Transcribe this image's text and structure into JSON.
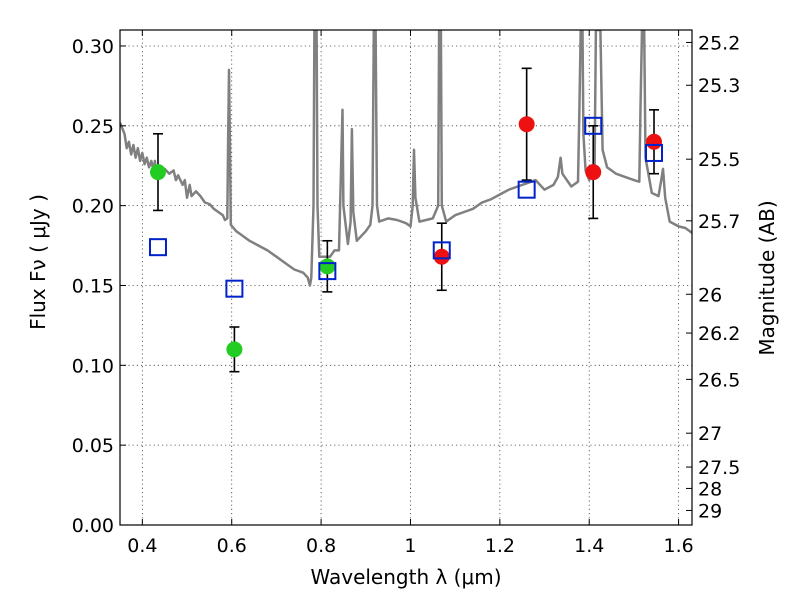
{
  "chart_data": {
    "type": "scatter",
    "xlabel": "Wavelength  λ (μm)",
    "ylabel": "Flux  Fν  ( μJy )",
    "y2label": "Magnitude (AB)",
    "xlim": [
      0.35,
      1.63
    ],
    "ylim": [
      0.0,
      0.31
    ],
    "grid": true,
    "x_ticks": [
      "0.4",
      "0.6",
      "0.8",
      "1",
      "1.2",
      "1.4",
      "1.6"
    ],
    "x_tick_values": [
      0.4,
      0.6,
      0.8,
      1.0,
      1.2,
      1.4,
      1.6
    ],
    "y_ticks": [
      "0.00",
      "0.05",
      "0.10",
      "0.15",
      "0.20",
      "0.25",
      "0.30"
    ],
    "y_tick_values": [
      0.0,
      0.05,
      0.1,
      0.15,
      0.2,
      0.25,
      0.3
    ],
    "y2_ticks": [
      {
        "label": "25.2",
        "flux": 0.3022
      },
      {
        "label": "25.3",
        "flux": 0.2754
      },
      {
        "label": "25.5",
        "flux": 0.2291
      },
      {
        "label": "25.7",
        "flux": 0.1905
      },
      {
        "label": "26",
        "flux": 0.1445
      },
      {
        "label": "26.2",
        "flux": 0.1202
      },
      {
        "label": "26.5",
        "flux": 0.0912
      },
      {
        "label": "27",
        "flux": 0.0575
      },
      {
        "label": "27.5",
        "flux": 0.0363
      },
      {
        "label": "28",
        "flux": 0.0229
      },
      {
        "label": "29",
        "flux": 0.0091
      }
    ],
    "series": [
      {
        "marker": "circle",
        "color": "#22cc22",
        "points": [
          {
            "x": 0.435,
            "y": 0.221,
            "err": 0.024
          },
          {
            "x": 0.606,
            "y": 0.11,
            "err": 0.014
          },
          {
            "x": 0.814,
            "y": 0.162,
            "err": 0.016
          }
        ]
      },
      {
        "marker": "circle",
        "color": "#ee1111",
        "points": [
          {
            "x": 1.07,
            "y": 0.168,
            "err": 0.021
          },
          {
            "x": 1.26,
            "y": 0.251,
            "err": 0.035
          },
          {
            "x": 1.409,
            "y": 0.221,
            "err": 0.029
          },
          {
            "x": 1.545,
            "y": 0.24,
            "err": 0.02
          }
        ]
      },
      {
        "marker": "open-square",
        "color": "#0022cc",
        "points": [
          {
            "x": 0.435,
            "y": 0.174
          },
          {
            "x": 0.606,
            "y": 0.148
          },
          {
            "x": 0.814,
            "y": 0.159
          },
          {
            "x": 1.07,
            "y": 0.172
          },
          {
            "x": 1.26,
            "y": 0.21
          },
          {
            "x": 1.409,
            "y": 0.25
          },
          {
            "x": 1.545,
            "y": 0.233
          }
        ]
      }
    ],
    "spectrum": {
      "color": "#808080",
      "points": [
        [
          0.35,
          0.252
        ],
        [
          0.36,
          0.245
        ],
        [
          0.365,
          0.236
        ],
        [
          0.37,
          0.24
        ],
        [
          0.375,
          0.232
        ],
        [
          0.38,
          0.238
        ],
        [
          0.385,
          0.23
        ],
        [
          0.39,
          0.236
        ],
        [
          0.395,
          0.228
        ],
        [
          0.4,
          0.233
        ],
        [
          0.405,
          0.226
        ],
        [
          0.41,
          0.23
        ],
        [
          0.415,
          0.224
        ],
        [
          0.42,
          0.228
        ],
        [
          0.425,
          0.222
        ],
        [
          0.428,
          0.228
        ],
        [
          0.43,
          0.221
        ],
        [
          0.44,
          0.225
        ],
        [
          0.445,
          0.219
        ],
        [
          0.45,
          0.223
        ],
        [
          0.46,
          0.22
        ],
        [
          0.47,
          0.222
        ],
        [
          0.475,
          0.216
        ],
        [
          0.48,
          0.219
        ],
        [
          0.49,
          0.213
        ],
        [
          0.495,
          0.216
        ],
        [
          0.5,
          0.205
        ],
        [
          0.506,
          0.213
        ],
        [
          0.51,
          0.206
        ],
        [
          0.52,
          0.209
        ],
        [
          0.53,
          0.206
        ],
        [
          0.54,
          0.202
        ],
        [
          0.55,
          0.201
        ],
        [
          0.56,
          0.198
        ],
        [
          0.57,
          0.196
        ],
        [
          0.58,
          0.194
        ],
        [
          0.585,
          0.191
        ],
        [
          0.59,
          0.192
        ],
        [
          0.592,
          0.24
        ],
        [
          0.594,
          0.285
        ],
        [
          0.596,
          0.24
        ],
        [
          0.598,
          0.188
        ],
        [
          0.61,
          0.184
        ],
        [
          0.62,
          0.182
        ],
        [
          0.63,
          0.18
        ],
        [
          0.64,
          0.178
        ],
        [
          0.66,
          0.175
        ],
        [
          0.68,
          0.172
        ],
        [
          0.7,
          0.168
        ],
        [
          0.72,
          0.164
        ],
        [
          0.74,
          0.16
        ],
        [
          0.76,
          0.158
        ],
        [
          0.77,
          0.155
        ],
        [
          0.775,
          0.15
        ],
        [
          0.778,
          0.155
        ],
        [
          0.783,
          0.2
        ],
        [
          0.785,
          0.31
        ],
        [
          0.79,
          0.31
        ],
        [
          0.792,
          0.2
        ],
        [
          0.796,
          0.168
        ],
        [
          0.81,
          0.168
        ],
        [
          0.82,
          0.168
        ],
        [
          0.83,
          0.172
        ],
        [
          0.84,
          0.172
        ],
        [
          0.846,
          0.24
        ],
        [
          0.848,
          0.26
        ],
        [
          0.85,
          0.2
        ],
        [
          0.86,
          0.176
        ],
        [
          0.866,
          0.19
        ],
        [
          0.869,
          0.248
        ],
        [
          0.872,
          0.196
        ],
        [
          0.88,
          0.178
        ],
        [
          0.9,
          0.184
        ],
        [
          0.91,
          0.188
        ],
        [
          0.915,
          0.2
        ],
        [
          0.918,
          0.31
        ],
        [
          0.922,
          0.31
        ],
        [
          0.925,
          0.2
        ],
        [
          0.93,
          0.19
        ],
        [
          0.95,
          0.192
        ],
        [
          0.97,
          0.191
        ],
        [
          0.99,
          0.189
        ],
        [
          1.0,
          0.187
        ],
        [
          1.005,
          0.2
        ],
        [
          1.008,
          0.235
        ],
        [
          1.011,
          0.205
        ],
        [
          1.02,
          0.19
        ],
        [
          1.05,
          0.192
        ],
        [
          1.062,
          0.2
        ],
        [
          1.064,
          0.31
        ],
        [
          1.068,
          0.31
        ],
        [
          1.07,
          0.2
        ],
        [
          1.08,
          0.19
        ],
        [
          1.1,
          0.194
        ],
        [
          1.12,
          0.196
        ],
        [
          1.14,
          0.198
        ],
        [
          1.16,
          0.202
        ],
        [
          1.18,
          0.204
        ],
        [
          1.2,
          0.207
        ],
        [
          1.22,
          0.21
        ],
        [
          1.24,
          0.212
        ],
        [
          1.26,
          0.214
        ],
        [
          1.28,
          0.216
        ],
        [
          1.3,
          0.21
        ],
        [
          1.32,
          0.213
        ],
        [
          1.33,
          0.218
        ],
        [
          1.336,
          0.23
        ],
        [
          1.34,
          0.22
        ],
        [
          1.36,
          0.212
        ],
        [
          1.375,
          0.215
        ],
        [
          1.378,
          0.26
        ],
        [
          1.381,
          0.31
        ],
        [
          1.385,
          0.31
        ],
        [
          1.387,
          0.245
        ],
        [
          1.392,
          0.222
        ],
        [
          1.4,
          0.216
        ],
        [
          1.412,
          0.225
        ],
        [
          1.415,
          0.31
        ],
        [
          1.425,
          0.31
        ],
        [
          1.43,
          0.235
        ],
        [
          1.44,
          0.224
        ],
        [
          1.45,
          0.222
        ],
        [
          1.46,
          0.22
        ],
        [
          1.48,
          0.218
        ],
        [
          1.5,
          0.216
        ],
        [
          1.512,
          0.215
        ],
        [
          1.515,
          0.265
        ],
        [
          1.518,
          0.31
        ],
        [
          1.523,
          0.31
        ],
        [
          1.526,
          0.23
        ],
        [
          1.54,
          0.208
        ],
        [
          1.555,
          0.206
        ],
        [
          1.56,
          0.214
        ],
        [
          1.565,
          0.223
        ],
        [
          1.57,
          0.205
        ],
        [
          1.58,
          0.19
        ],
        [
          1.6,
          0.187
        ],
        [
          1.615,
          0.186
        ],
        [
          1.63,
          0.183
        ]
      ]
    }
  }
}
